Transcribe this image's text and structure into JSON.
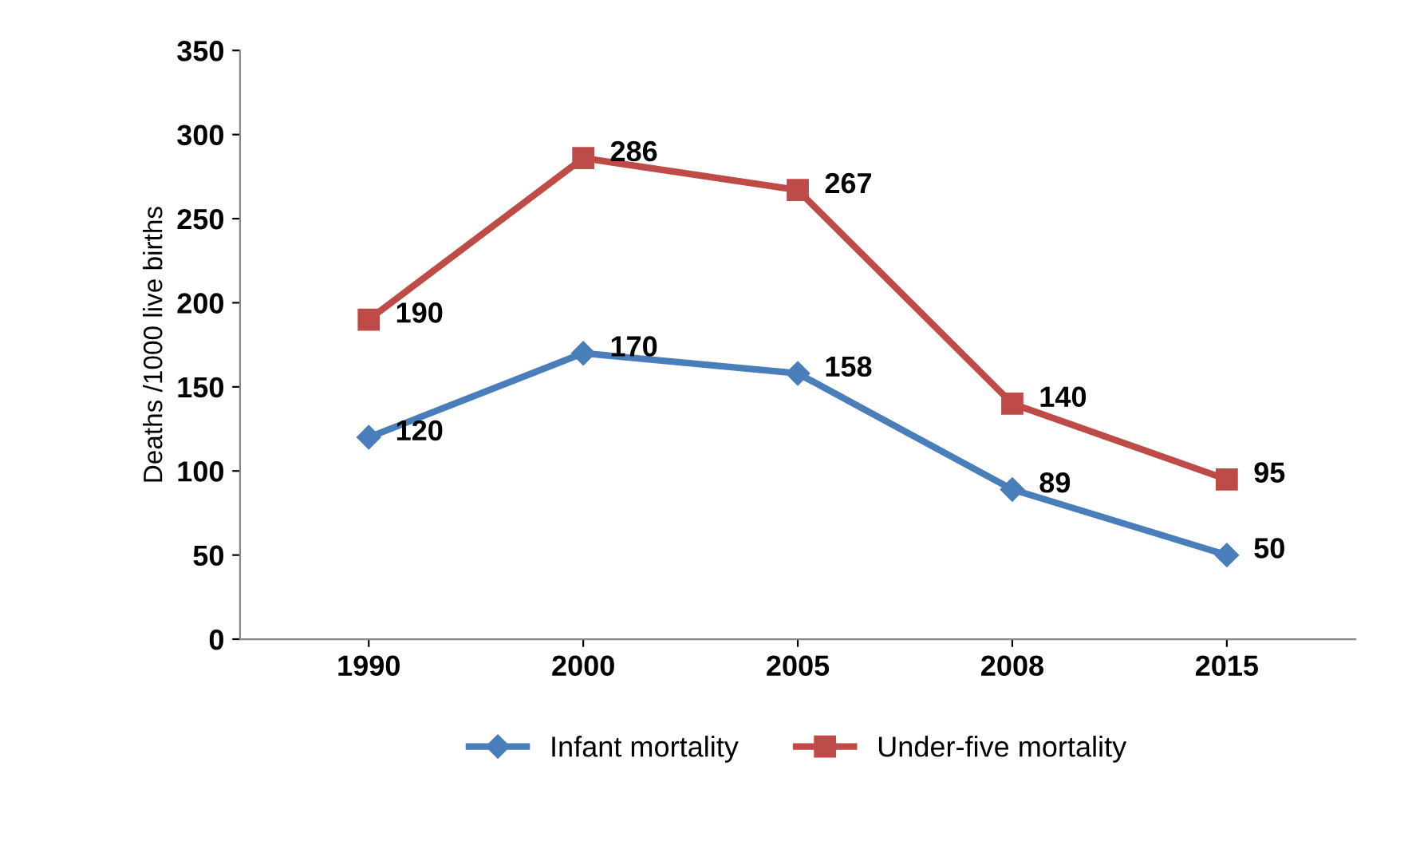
{
  "chart_data": {
    "type": "line",
    "ylabel": "Deaths /1000 live births",
    "categories": [
      "1990",
      "2000",
      "2005",
      "2008",
      "2015"
    ],
    "series": [
      {
        "name": "Infant mortality",
        "color": "#4a7ebb",
        "marker": "diamond",
        "values": [
          120,
          170,
          158,
          89,
          50
        ]
      },
      {
        "name": "Under-five mortality",
        "color": "#be4b48",
        "marker": "square",
        "values": [
          190,
          286,
          267,
          140,
          95
        ]
      }
    ],
    "ylim": [
      0,
      350
    ],
    "yticks": [
      0,
      50,
      100,
      150,
      200,
      250,
      300,
      350
    ],
    "grid": false,
    "legend": "bottom",
    "data_labels": true,
    "line_style": "solid"
  }
}
